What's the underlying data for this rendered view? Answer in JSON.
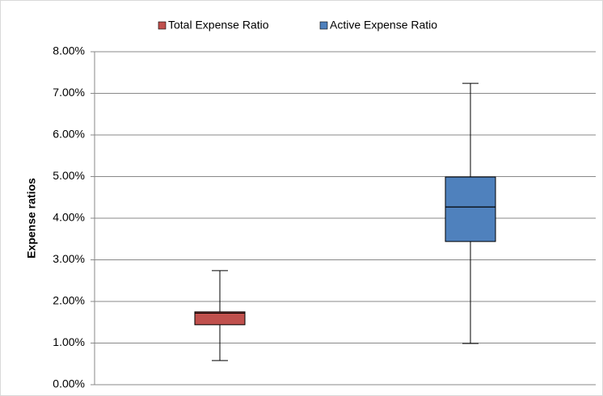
{
  "chart_data": {
    "type": "box",
    "y_label": "Expense ratios",
    "series": [
      {
        "name": "Total Expense Ratio",
        "color": "#c0504d",
        "min": 0.58,
        "q1": 1.44,
        "median": 1.72,
        "q3": 1.75,
        "max": 2.74
      },
      {
        "name": "Active Expense Ratio",
        "color": "#4f81bd",
        "min": 0.99,
        "q1": 3.44,
        "median": 4.27,
        "q3": 4.99,
        "max": 7.24
      }
    ],
    "ylim": [
      0,
      8
    ],
    "yticks": [
      {
        "value": 0,
        "label": "0.00%"
      },
      {
        "value": 1,
        "label": "1.00%"
      },
      {
        "value": 2,
        "label": "2.00%"
      },
      {
        "value": 3,
        "label": "3.00%"
      },
      {
        "value": 4,
        "label": "4.00%"
      },
      {
        "value": 5,
        "label": "5.00%"
      },
      {
        "value": 6,
        "label": "6.00%"
      },
      {
        "value": 7,
        "label": "7.00%"
      },
      {
        "value": 8,
        "label": "8.00%"
      }
    ],
    "grid": true,
    "legend": "top"
  }
}
